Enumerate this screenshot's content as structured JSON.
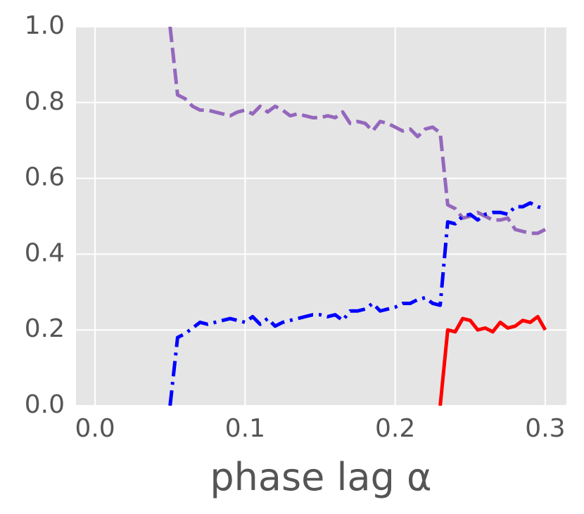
{
  "chart_data": {
    "type": "line",
    "xlabel": "phase lag α",
    "x": [
      0.05,
      0.055,
      0.06,
      0.065,
      0.07,
      0.075,
      0.08,
      0.085,
      0.09,
      0.095,
      0.1,
      0.105,
      0.11,
      0.115,
      0.12,
      0.125,
      0.13,
      0.135,
      0.14,
      0.145,
      0.15,
      0.155,
      0.16,
      0.165,
      0.17,
      0.175,
      0.18,
      0.185,
      0.19,
      0.195,
      0.2,
      0.205,
      0.21,
      0.215,
      0.22,
      0.225,
      0.23,
      0.235,
      0.24,
      0.245,
      0.25,
      0.255,
      0.26,
      0.265,
      0.27,
      0.275,
      0.28,
      0.285,
      0.29,
      0.295,
      0.3
    ],
    "series": [
      {
        "color": "#9467bd",
        "linestyle": "dashed",
        "values": [
          1.0,
          0.82,
          0.81,
          0.79,
          0.78,
          0.78,
          0.775,
          0.77,
          0.765,
          0.775,
          0.78,
          0.77,
          0.79,
          0.775,
          0.79,
          0.78,
          0.765,
          0.77,
          0.765,
          0.76,
          0.76,
          0.765,
          0.76,
          0.775,
          0.745,
          0.75,
          0.745,
          0.725,
          0.75,
          0.745,
          0.735,
          0.725,
          0.73,
          0.71,
          0.73,
          0.735,
          0.72,
          0.53,
          0.52,
          0.495,
          0.5,
          0.51,
          0.5,
          0.49,
          0.49,
          0.495,
          0.465,
          0.46,
          0.455,
          0.455,
          0.465
        ]
      },
      {
        "color": "#0000ff",
        "linestyle": "dashdot",
        "values": [
          0.0,
          0.18,
          0.19,
          0.205,
          0.22,
          0.215,
          0.22,
          0.225,
          0.23,
          0.225,
          0.22,
          0.235,
          0.215,
          0.23,
          0.21,
          0.22,
          0.225,
          0.23,
          0.235,
          0.24,
          0.24,
          0.235,
          0.24,
          0.225,
          0.25,
          0.25,
          0.255,
          0.27,
          0.25,
          0.255,
          0.26,
          0.27,
          0.27,
          0.28,
          0.285,
          0.27,
          0.265,
          0.485,
          0.48,
          0.5,
          0.505,
          0.49,
          0.505,
          0.51,
          0.51,
          0.505,
          0.525,
          0.525,
          0.535,
          0.525,
          0.52
        ]
      },
      {
        "color": "#ff0000",
        "linestyle": "solid",
        "values": [
          null,
          null,
          null,
          null,
          null,
          null,
          null,
          null,
          null,
          null,
          null,
          null,
          null,
          null,
          null,
          null,
          null,
          null,
          null,
          null,
          null,
          null,
          null,
          null,
          null,
          null,
          null,
          null,
          null,
          null,
          null,
          null,
          null,
          null,
          null,
          null,
          0.0,
          0.2,
          0.195,
          0.23,
          0.225,
          0.2,
          0.205,
          0.195,
          0.22,
          0.205,
          0.21,
          0.225,
          0.22,
          0.235,
          0.2
        ]
      }
    ],
    "xlim": [
      -0.0127,
      0.3141
    ],
    "ylim": [
      0,
      1
    ],
    "xticks": [
      {
        "value": 0,
        "label": "0.0"
      },
      0.1,
      0.2,
      0.3
    ],
    "yticks": [
      {
        "value": 0,
        "label": "0.0"
      },
      0.2,
      0.4,
      0.6,
      0.8,
      {
        "value": 1,
        "label": "1.0"
      }
    ],
    "grid": true
  }
}
